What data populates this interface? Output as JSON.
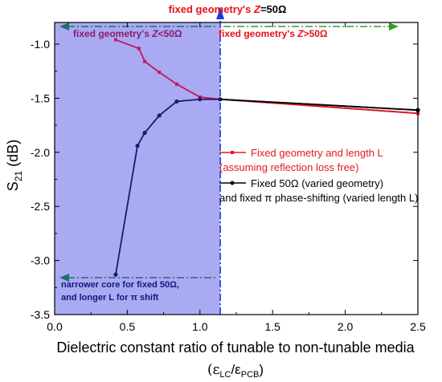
{
  "chart_data": {
    "type": "line",
    "xlabel": "Dielectric constant ratio of tunable to non-tunable media",
    "xlabel_sub": "(εLC/εPCB)",
    "xlim": [
      0.0,
      2.5
    ],
    "x_ticks": [
      "0.0",
      "0.5",
      "1.0",
      "1.5",
      "2.0",
      "2.5"
    ],
    "ylabel": "S21 (dB)",
    "ylim": [
      -3.5,
      -0.8
    ],
    "y_ticks": [
      "-1.0",
      "-1.5",
      "-2.0",
      "-2.5",
      "-3.0",
      "-3.5"
    ],
    "grid": false,
    "legend_position": "right-middle",
    "shaded_region": {
      "x_from": 0.0,
      "x_to": 1.14,
      "color": "#a9aaf2"
    },
    "threshold_x": 1.14,
    "series": [
      {
        "name": "Fixed geometry and length L (assuming reflection loss free)",
        "color": "#e31a1c",
        "x": [
          0.42,
          0.58,
          0.62,
          0.72,
          0.84,
          1.0,
          1.14,
          2.5
        ],
        "y": [
          -0.96,
          -1.04,
          -1.16,
          -1.26,
          -1.37,
          -1.49,
          -1.51,
          -1.64
        ]
      },
      {
        "name": "Fixed 50Ω (varied geometry) and fixed π phase-shifting (varied length L)",
        "color": "#000000",
        "x": [
          0.42,
          0.57,
          0.62,
          0.72,
          0.84,
          1.0,
          1.14,
          2.5
        ],
        "y": [
          -3.13,
          -1.94,
          -1.82,
          -1.66,
          -1.53,
          -1.51,
          -1.51,
          -1.61
        ]
      }
    ],
    "legend": {
      "entry1_line1": "Fixed geometry and length L",
      "entry1_line2": "(assuming reflection loss free)",
      "entry2_line1": "Fixed 50Ω (varied geometry)",
      "entry2_line2": "and fixed π phase-shifting (varied length L)"
    },
    "annotations": {
      "top_prefix": "fixed geometry's ",
      "top_z": "Z",
      "top_eq": "=",
      "top_value": "50Ω",
      "less_prefix": "fixed geometry's ",
      "less_z": "Z",
      "less_rest": "<50Ω",
      "greater_prefix": "fixed geometry's ",
      "greater_z": "Z",
      "greater_rest": ">50Ω",
      "bottom_line1": "narrower core for fixed 50Ω,",
      "bottom_line2": "and longer L for π shift",
      "colors": {
        "top": "#e8101a",
        "less": "#8b1a6e",
        "greater": "#e8101a",
        "bottom": "#15157d",
        "arrow_up": "#1e3be0",
        "arrow_green": "#2aa12a",
        "arrow_teal": "#1f6e6e"
      }
    }
  }
}
